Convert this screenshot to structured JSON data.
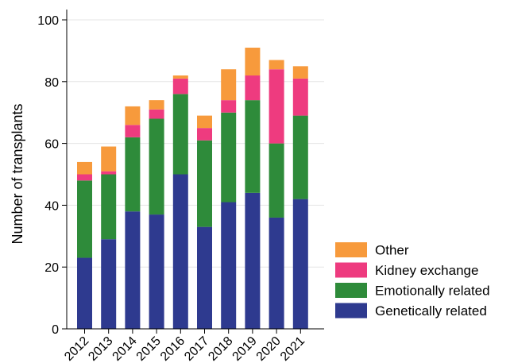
{
  "chart_data": {
    "type": "bar",
    "stacked": true,
    "title": "",
    "xlabel": "",
    "ylabel": "Number of transplants",
    "ylim": [
      0,
      100
    ],
    "yticks": [
      0,
      20,
      40,
      60,
      80,
      100
    ],
    "grid": true,
    "legend_position": "bottom-right",
    "categories": [
      "2012",
      "2013",
      "2014",
      "2015",
      "2016",
      "2017",
      "2018",
      "2019",
      "2020",
      "2021"
    ],
    "series": [
      {
        "name": "Genetically related",
        "color": "#2e3a8f",
        "values": [
          23,
          29,
          38,
          37,
          50,
          33,
          41,
          44,
          36,
          42
        ]
      },
      {
        "name": "Emotionally related",
        "color": "#2e8b3a",
        "values": [
          25,
          21,
          24,
          31,
          26,
          28,
          29,
          30,
          24,
          27
        ]
      },
      {
        "name": "Kidney exchange",
        "color": "#ee3b7f",
        "values": [
          2,
          1,
          4,
          3,
          5,
          4,
          4,
          8,
          24,
          12
        ]
      },
      {
        "name": "Other",
        "color": "#f79a3c",
        "values": [
          4,
          8,
          6,
          3,
          1,
          4,
          10,
          9,
          3,
          4
        ]
      }
    ],
    "legend_order": [
      "Other",
      "Kidney exchange",
      "Emotionally related",
      "Genetically related"
    ]
  }
}
